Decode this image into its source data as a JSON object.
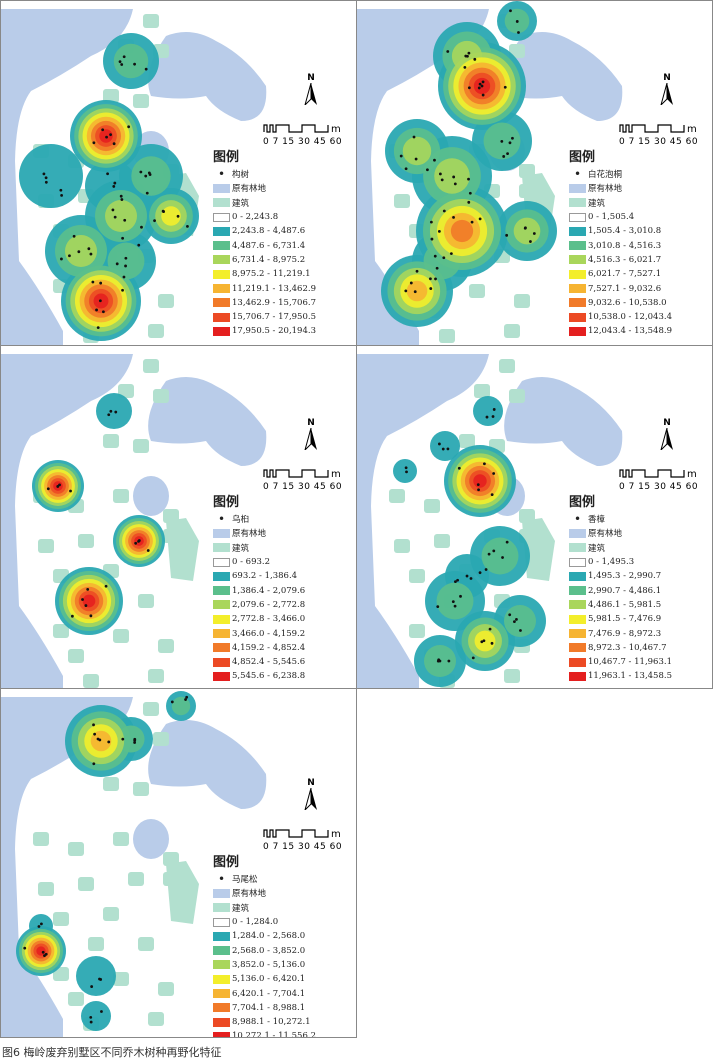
{
  "legend_common": {
    "title": "图例",
    "woodland": "原有林地",
    "building": "建筑"
  },
  "scale": {
    "labels": "0 7 15 30 45 60",
    "unit": "m"
  },
  "north": "N",
  "colors": {
    "woodland": "#b9cce9",
    "building": "#b2e0cf",
    "classes": [
      "#ffffff",
      "#2aa8b2",
      "#5bbf8c",
      "#a9d65b",
      "#f3ee2b",
      "#f6b432",
      "#f17a29",
      "#ec4a24",
      "#e41f1f"
    ]
  },
  "panels": [
    {
      "species": "构树",
      "classes": [
        "0 - 2,243.8",
        "2,243.8 - 4,487.6",
        "4,487.6 - 6,731.4",
        "6,731.4 - 8,975.2",
        "8,975.2 - 11,219.1",
        "11,219.1 - 13,462.9",
        "13,462.9 - 15,706.7",
        "15,706.7 - 17,950.5",
        "17,950.5 - 20,194.3"
      ]
    },
    {
      "species": "白花泡桐",
      "classes": [
        "0 - 1,505.4",
        "1,505.4 - 3,010.8",
        "3,010.8 - 4,516.3",
        "4,516.3 - 6,021.7",
        "6,021.7 - 7,527.1",
        "7,527.1 - 9,032.6",
        "9,032.6 - 10,538.0",
        "10,538.0 - 12,043.4",
        "12,043.4 - 13,548.9"
      ]
    },
    {
      "species": "乌桕",
      "classes": [
        "0 - 693.2",
        "693.2 - 1,386.4",
        "1,386.4 - 2,079.6",
        "2,079.6 - 2,772.8",
        "2,772.8 - 3,466.0",
        "3,466.0 - 4,159.2",
        "4,159.2 - 4,852.4",
        "4,852.4 - 5,545.6",
        "5,545.6 - 6,238.8"
      ]
    },
    {
      "species": "香樟",
      "classes": [
        "0 - 1,495.3",
        "1,495.3 - 2,990.7",
        "2,990.7 - 4,486.1",
        "4,486.1 - 5,981.5",
        "5,981.5 - 7,476.9",
        "7,476.9 - 8,972.3",
        "8,972.3 - 10,467.7",
        "10,467.7 - 11,963.1",
        "11,963.1 - 13,458.5"
      ]
    },
    {
      "species": "马尾松",
      "classes": [
        "0 - 1,284.0",
        "1,284.0 - 2,568.0",
        "2,568.0 - 3,852.0",
        "3,852.0 - 5,136.0",
        "5,136.0 - 6,420.1",
        "6,420.1 - 7,704.1",
        "7,704.1 - 8,988.1",
        "8,988.1 - 10,272.1",
        "10,272.1 - 11,556.2"
      ]
    }
  ],
  "caption": "图6  梅岭废弃别墅区不同乔木树种再野化特征"
}
